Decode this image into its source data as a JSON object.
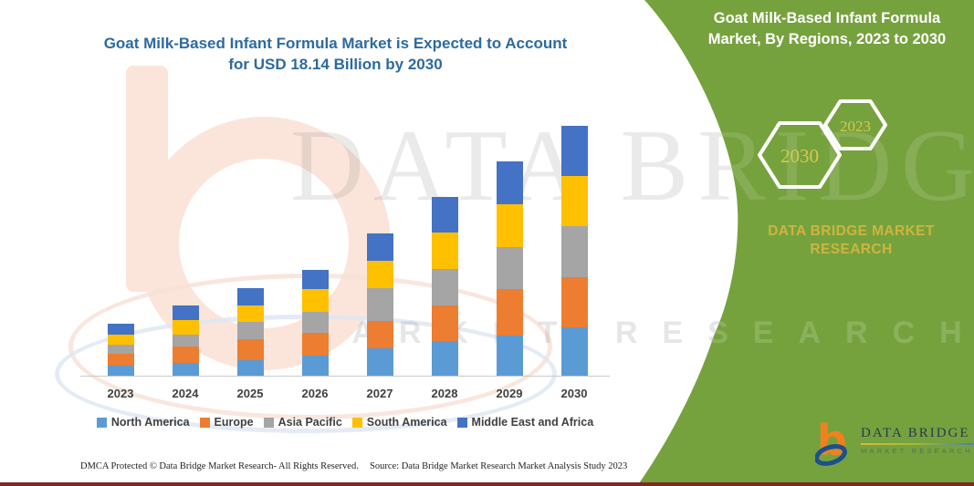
{
  "page": {
    "title_line1": "Goat Milk-Based Infant Formula Market is Expected to Account",
    "title_line2": "for USD 18.14 Billion by 2030"
  },
  "side_panel": {
    "heading_line1": "Goat Milk-Based Infant Formula",
    "heading_line2": "Market, By Regions, 2023 to 2030",
    "hexagon_large_year": "2030",
    "hexagon_small_year": "2023",
    "brand_name": "DATA BRIDGE MARKET RESEARCH"
  },
  "watermark": {
    "big_text": "DATA BRIDGE",
    "sub_text": "MARKET RESEARCH"
  },
  "logo": {
    "name": "DATA BRIDGE",
    "sub": "MARKET RESEARCH"
  },
  "footer": {
    "left": "DMCA Protected © Data Bridge Market Research-  All Rights Reserved.",
    "right": "Source: Data Bridge Market Research  Market Analysis Study 2023"
  },
  "colors": {
    "panel_green": "#76a23e",
    "accent_gold": "#cdb53e",
    "title_blue": "#2d6aa0",
    "bottom_rule_maroon": "#7a2b24",
    "logo_orange": "#f0811f",
    "logo_blue": "#1d4f8f"
  },
  "chart_data": {
    "type": "bar",
    "stacked": true,
    "title": "Goat Milk-Based Infant Formula Market is Expected to Account for USD 18.14 Billion by 2030",
    "value_unit": "USD Billion",
    "categories": [
      "2023",
      "2024",
      "2025",
      "2026",
      "2027",
      "2028",
      "2029",
      "2030"
    ],
    "series": [
      {
        "name": "North America",
        "color": "#5B9BD5",
        "values": [
          0.73,
          0.95,
          1.1,
          1.43,
          1.97,
          2.52,
          2.94,
          3.49
        ]
      },
      {
        "name": "Europe",
        "color": "#ED7D31",
        "values": [
          0.86,
          1.15,
          1.55,
          1.68,
          2.03,
          2.58,
          3.36,
          3.64
        ]
      },
      {
        "name": "Asia Pacific",
        "color": "#A5A5A5",
        "values": [
          0.66,
          0.91,
          1.24,
          1.5,
          2.34,
          2.67,
          3.05,
          3.76
        ]
      },
      {
        "name": "South America",
        "color": "#FFC000",
        "values": [
          0.73,
          1.04,
          1.19,
          1.66,
          1.99,
          2.63,
          3.09,
          3.6
        ]
      },
      {
        "name": "Middle East and Africa",
        "color": "#4472C4",
        "values": [
          0.78,
          1.04,
          1.28,
          1.39,
          1.99,
          2.56,
          3.13,
          3.65
        ]
      }
    ],
    "totals": [
      3.76,
      5.09,
      6.36,
      7.66,
      10.32,
      12.96,
      15.57,
      18.14
    ],
    "ylim": [
      0,
      18.14
    ],
    "gridlines": false,
    "y_axis_visible": false,
    "legend_position": "bottom"
  }
}
